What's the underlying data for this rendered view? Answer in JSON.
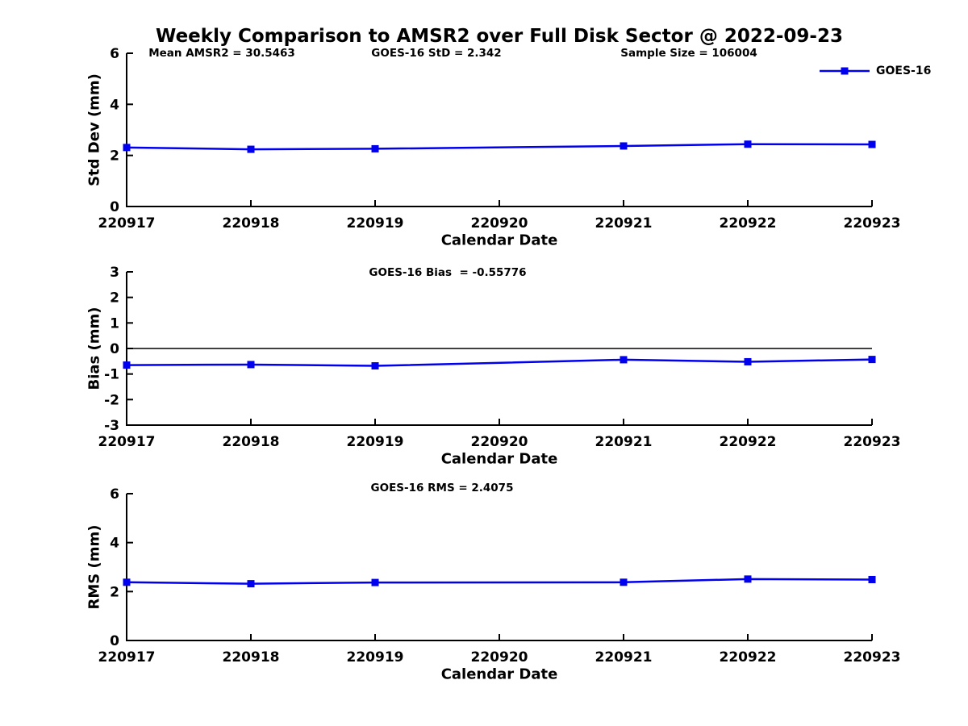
{
  "title": "Weekly Comparison to AMSR2 over Full Disk Sector @ 2022-09-23",
  "annotations": {
    "mean_amsr2": "Mean AMSR2 = 30.5463",
    "goes16_std": "GOES-16 StD = 2.342",
    "sample_size": "Sample Size = 106004"
  },
  "legend": {
    "label": "GOES-16",
    "position": "top-right"
  },
  "xlabel": "Calendar Date",
  "colors": {
    "series": "#0000EE",
    "axis": "#000000",
    "background": "#FFFFFF"
  },
  "chart_data": [
    {
      "type": "line",
      "name": "std-dev",
      "series_name": "GOES-16",
      "ylabel": "Std Dev (mm)",
      "xlabel": "Calendar Date",
      "annotation": "",
      "x_tick_labels": [
        "220917",
        "220918",
        "220919",
        "220920",
        "220921",
        "220922",
        "220923"
      ],
      "xlim": [
        220917,
        220923
      ],
      "x": [
        220917,
        220918,
        220919,
        220921,
        220922,
        220923
      ],
      "y": [
        2.31,
        2.24,
        2.26,
        2.37,
        2.44,
        2.43
      ],
      "ylim": [
        0,
        6
      ],
      "yticks": [
        0,
        2,
        4,
        6
      ],
      "zero_line": false,
      "grid": false,
      "marker": "square"
    },
    {
      "type": "line",
      "name": "bias",
      "series_name": "GOES-16",
      "ylabel": "Bias (mm)",
      "xlabel": "Calendar Date",
      "annotation": "GOES-16 Bias  = -0.55776",
      "x_tick_labels": [
        "220917",
        "220918",
        "220919",
        "220920",
        "220921",
        "220922",
        "220923"
      ],
      "xlim": [
        220917,
        220923
      ],
      "x": [
        220917,
        220918,
        220919,
        220921,
        220922,
        220923
      ],
      "y": [
        -0.65,
        -0.63,
        -0.68,
        -0.44,
        -0.52,
        -0.43
      ],
      "ylim": [
        -3,
        3
      ],
      "yticks": [
        -3,
        -2,
        -1,
        0,
        1,
        2,
        3
      ],
      "zero_line": true,
      "grid": false,
      "marker": "square"
    },
    {
      "type": "line",
      "name": "rms",
      "series_name": "GOES-16",
      "ylabel": "RMS (mm)",
      "xlabel": "Calendar Date",
      "annotation": "GOES-16 RMS = 2.4075",
      "x_tick_labels": [
        "220917",
        "220918",
        "220919",
        "220920",
        "220921",
        "220922",
        "220923"
      ],
      "xlim": [
        220917,
        220923
      ],
      "x": [
        220917,
        220918,
        220919,
        220921,
        220922,
        220923
      ],
      "y": [
        2.38,
        2.32,
        2.37,
        2.38,
        2.51,
        2.49
      ],
      "ylim": [
        0,
        6
      ],
      "yticks": [
        0,
        2,
        4,
        6
      ],
      "zero_line": false,
      "grid": false,
      "marker": "square"
    }
  ]
}
